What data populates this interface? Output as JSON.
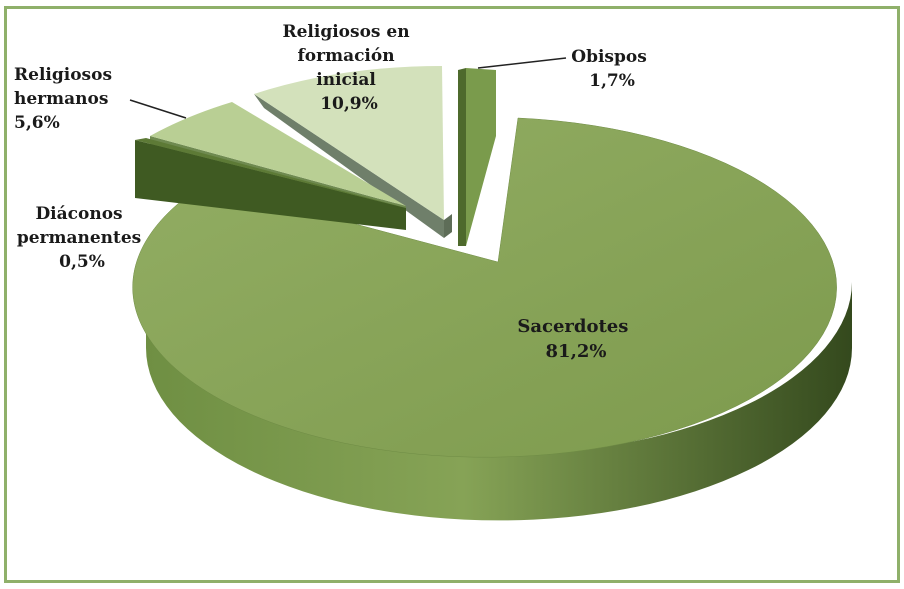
{
  "chart_data": {
    "type": "pie",
    "style": "3d-exploded",
    "slices": [
      {
        "label_lines": [
          "Sacerdotes"
        ],
        "value_text": "81,2%",
        "value": 81.2,
        "color": "#86a356"
      },
      {
        "label_lines": [
          "Obispos"
        ],
        "value_text": "1,7%",
        "value": 1.7,
        "color": "#7a9b4c"
      },
      {
        "label_lines": [
          "Religiosos en",
          "formación",
          "inicial"
        ],
        "value_text": "10,9%",
        "value": 10.9,
        "color": "#d3e1bb"
      },
      {
        "label_lines": [
          "Religiosos",
          "hermanos"
        ],
        "value_text": "5,6%",
        "value": 5.6,
        "color": "#b9cf94"
      },
      {
        "label_lines": [
          "Diáconos",
          "permanentes"
        ],
        "value_text": "0,5%",
        "value": 0.5,
        "color": "#4e6a2c"
      }
    ]
  },
  "colors": {
    "border": "#8fb06a",
    "sacerdotes_top": "#86a356",
    "sacerdotes_side": "#4c6a2b",
    "obispos": "#7a9b4c",
    "formacion_top": "#d3e1bb",
    "formacion_side": "#6f7f6a",
    "hermanos_top": "#b9cf94",
    "diaconos": "#4e6a2c"
  }
}
